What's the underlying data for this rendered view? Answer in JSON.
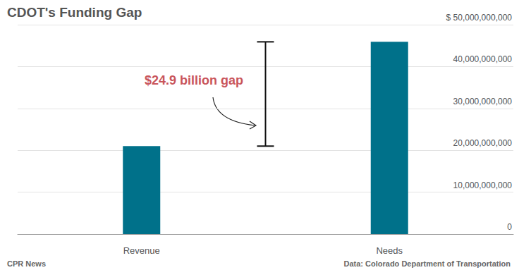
{
  "chart_data": {
    "type": "bar",
    "title": "CDOT's Funding Gap",
    "categories": [
      "Revenue",
      "Needs"
    ],
    "values": [
      21000000000,
      45900000000
    ],
    "color": "#00718a",
    "ylim": [
      0,
      50000000000
    ],
    "yticks": [
      0,
      {
        "value": 10000000000,
        "label": "10,000,000,000"
      },
      {
        "value": 20000000000,
        "label": "20,000,000,000"
      },
      {
        "value": 30000000000,
        "label": "30,000,000,000"
      },
      {
        "value": 40000000000,
        "label": "40,000,000,000"
      },
      {
        "value": 50000000000,
        "label": "$ 50,000,000,000"
      }
    ],
    "grid": true,
    "annotations": [
      {
        "text": "$24.9 billion gap",
        "color": "#c9555b"
      }
    ],
    "credit": "CPR News",
    "source": "Data: Colorado Department of Transportation"
  }
}
